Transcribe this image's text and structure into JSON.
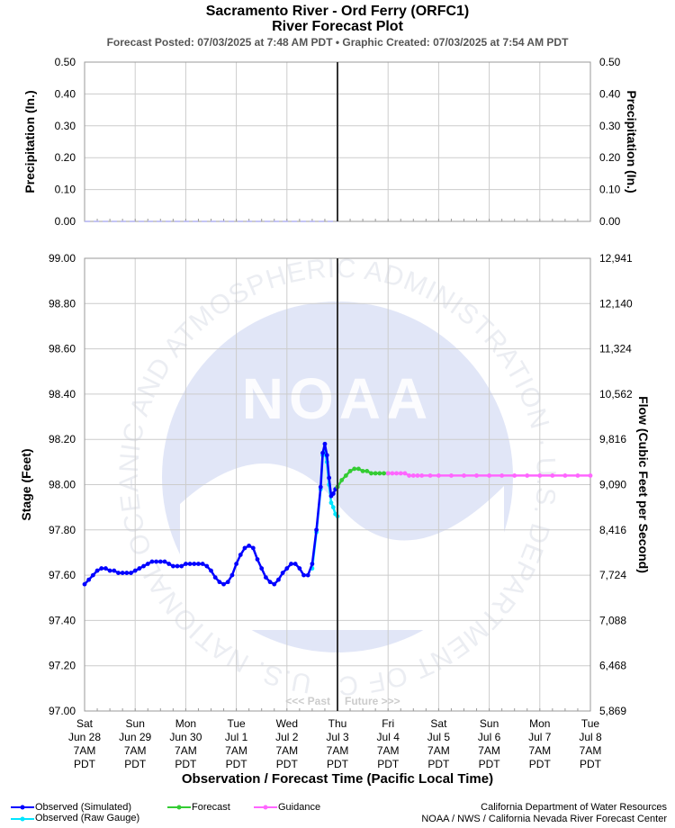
{
  "header": {
    "title": "Sacramento River - Ord Ferry (ORFC1)",
    "subtitle": "River Forecast Plot",
    "posted": "Forecast Posted: 07/03/2025 at 7:48 AM PDT  •  Graphic Created: 07/03/2025 at 7:54 AM PDT"
  },
  "footer": {
    "agency_line1": "California Department of Water Resources",
    "agency_line2": "NOAA / NWS / California Nevada River Forecast Center"
  },
  "colors": {
    "observed_simulated": "#0000ff",
    "observed_raw": "#00e5ff",
    "forecast": "#33cc33",
    "guidance": "#ff66ff",
    "precip": "#b0b0f0",
    "now_line": "#333333",
    "grid": "#cccccc"
  },
  "chart_data": [
    {
      "type": "line",
      "name": "precipitation",
      "ylabel": "Precipitation (In.)",
      "ylabel_right": "Precipitation (In.)",
      "ylim": [
        0,
        0.5
      ],
      "yticks": [
        "0.00",
        "0.10",
        "0.20",
        "0.30",
        "0.40",
        "0.50"
      ],
      "series": [
        {
          "values_x": [
            0,
            100
          ],
          "values_y": [
            0,
            0
          ]
        }
      ],
      "grid": true
    },
    {
      "type": "line",
      "name": "stage-flow",
      "xlabel": "Observation / Forecast Time (Pacific Local Time)",
      "ylabel": "Stage (Feet)",
      "ylabel_right": "Flow (Cubic Feet per Second)",
      "ylim": [
        97.0,
        99.0
      ],
      "yticks": [
        "97.00",
        "97.20",
        "97.40",
        "97.60",
        "97.80",
        "98.00",
        "98.20",
        "98.40",
        "98.60",
        "98.80",
        "99.00"
      ],
      "yticks_right": [
        "5,869",
        "6,468",
        "7,088",
        "7,724",
        "8,416",
        "9,090",
        "9,816",
        "10,562",
        "11,324",
        "12,140",
        "12,941"
      ],
      "x_unit": "hours since Sat Jun 28 7AM PDT",
      "xlim": [
        0,
        240
      ],
      "xticks": [
        [
          "Sat",
          "Jun 28",
          "7AM",
          "PDT"
        ],
        [
          "Sun",
          "Jun 29",
          "7AM",
          "PDT"
        ],
        [
          "Mon",
          "Jun 30",
          "7AM",
          "PDT"
        ],
        [
          "Tue",
          "Jul 1",
          "7AM",
          "PDT"
        ],
        [
          "Wed",
          "Jul 2",
          "7AM",
          "PDT"
        ],
        [
          "Thu",
          "Jul 3",
          "7AM",
          "PDT"
        ],
        [
          "Fri",
          "Jul 4",
          "7AM",
          "PDT"
        ],
        [
          "Sat",
          "Jul 5",
          "7AM",
          "PDT"
        ],
        [
          "Sun",
          "Jul 6",
          "7AM",
          "PDT"
        ],
        [
          "Mon",
          "Jul 7",
          "7AM",
          "PDT"
        ],
        [
          "Tue",
          "Jul 8",
          "7AM",
          "PDT"
        ]
      ],
      "now_x": 120,
      "annotation_past": "<<< Past",
      "annotation_future": "Future >>>",
      "watermark_text": "U.S. NATIONAL OCEANIC AND ATMOSPHERIC ADMINISTRATION · U.S. DEPARTMENT OF COMMERCE",
      "watermark_logo": "NOAA",
      "series": [
        {
          "name": "Observed (Simulated)",
          "x": [
            0,
            2,
            4,
            6,
            8,
            10,
            12,
            14,
            16,
            18,
            20,
            22,
            24,
            26,
            28,
            30,
            32,
            34,
            36,
            38,
            40,
            42,
            44,
            46,
            48,
            50,
            52,
            54,
            56,
            58,
            60,
            62,
            64,
            66,
            68,
            70,
            72,
            74,
            76,
            78,
            80,
            82,
            84,
            86,
            88,
            90,
            92,
            94,
            96,
            98,
            100,
            102,
            104,
            106,
            108,
            110,
            112,
            113,
            114,
            115,
            116,
            117,
            118,
            119,
            120
          ],
          "y": [
            97.56,
            97.58,
            97.6,
            97.62,
            97.63,
            97.63,
            97.62,
            97.62,
            97.61,
            97.61,
            97.61,
            97.61,
            97.62,
            97.63,
            97.64,
            97.65,
            97.66,
            97.66,
            97.66,
            97.66,
            97.65,
            97.64,
            97.64,
            97.64,
            97.65,
            97.65,
            97.65,
            97.65,
            97.65,
            97.64,
            97.62,
            97.59,
            97.57,
            97.56,
            97.57,
            97.6,
            97.65,
            97.69,
            97.72,
            97.73,
            97.72,
            97.67,
            97.63,
            97.59,
            97.57,
            97.56,
            97.58,
            97.61,
            97.63,
            97.65,
            97.65,
            97.63,
            97.6,
            97.6,
            97.65,
            97.8,
            97.99,
            98.14,
            98.18,
            98.13,
            98.03,
            97.95,
            97.96,
            97.98,
            97.99
          ]
        },
        {
          "name": "Observed (Raw Gauge)",
          "x": [
            108,
            110,
            112,
            113,
            114,
            115,
            116,
            117,
            118,
            119,
            120
          ],
          "y": [
            97.63,
            97.79,
            97.98,
            98.13,
            98.15,
            98.1,
            98.0,
            97.92,
            97.9,
            97.87,
            97.86
          ]
        },
        {
          "name": "Forecast",
          "x": [
            120,
            122,
            124,
            126,
            128,
            130,
            132,
            134,
            136,
            138,
            140,
            142,
            144
          ],
          "y": [
            97.99,
            98.02,
            98.04,
            98.06,
            98.07,
            98.07,
            98.06,
            98.06,
            98.05,
            98.05,
            98.05,
            98.05,
            98.05
          ]
        },
        {
          "name": "Guidance",
          "x": [
            144,
            146,
            148,
            150,
            152,
            154,
            156,
            158,
            160,
            164,
            168,
            174,
            180,
            186,
            192,
            198,
            204,
            210,
            216,
            222,
            228,
            234,
            240
          ],
          "y": [
            98.05,
            98.05,
            98.05,
            98.05,
            98.05,
            98.04,
            98.04,
            98.04,
            98.04,
            98.04,
            98.04,
            98.04,
            98.04,
            98.04,
            98.04,
            98.04,
            98.04,
            98.04,
            98.04,
            98.04,
            98.04,
            98.04,
            98.04
          ]
        }
      ],
      "legend": [
        "Observed (Simulated)",
        "Forecast",
        "Guidance",
        "Observed (Raw Gauge)"
      ],
      "legend_position": "bottom-left",
      "grid": true
    }
  ]
}
